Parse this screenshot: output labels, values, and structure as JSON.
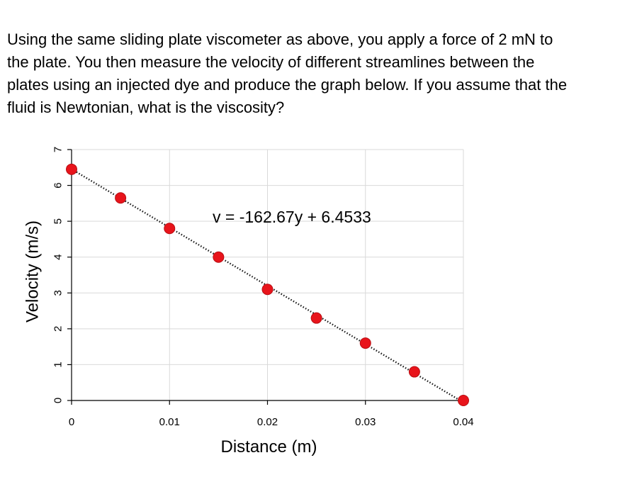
{
  "question": {
    "lines": [
      "Using the same sliding plate viscometer as above, you apply a force of 2 mN to",
      "the plate. You then measure the velocity of different streamlines between the",
      "plates using an injected dye and produce the graph below. If you assume that the",
      "fluid is Newtonian, what is the viscosity?"
    ]
  },
  "chart_data": {
    "type": "scatter",
    "title": "",
    "xlabel": "Distance (m)",
    "ylabel": "Velocity (m/s)",
    "xlim": [
      0,
      0.04
    ],
    "ylim": [
      0,
      7
    ],
    "x_ticks": [
      0,
      0.01,
      0.02,
      0.03,
      0.04
    ],
    "x_tick_labels": [
      "0",
      "0.01",
      "0.02",
      "0.03",
      "0.04"
    ],
    "y_ticks": [
      0,
      1,
      2,
      3,
      4,
      5,
      6,
      7
    ],
    "y_tick_labels": [
      "0",
      "1",
      "2",
      "3",
      "4",
      "5",
      "6",
      "7"
    ],
    "grid": true,
    "series": [
      {
        "x": [
          0,
          0.005,
          0.01,
          0.015,
          0.02,
          0.025,
          0.03,
          0.035,
          0.04
        ],
        "y": [
          6.45,
          5.65,
          4.8,
          4.0,
          3.1,
          2.3,
          1.6,
          0.8,
          0.0
        ],
        "marker_color": "#e8141b"
      }
    ],
    "trendline": {
      "type": "linear",
      "slope": -162.67,
      "intercept": 6.4533,
      "style": "dotted",
      "color": "#1a1a1a"
    },
    "annotations": [
      {
        "text": "v = -162.67y + 6.4533"
      }
    ],
    "plot_background": "#ffffff",
    "grid_color": "#d9d9d9"
  }
}
